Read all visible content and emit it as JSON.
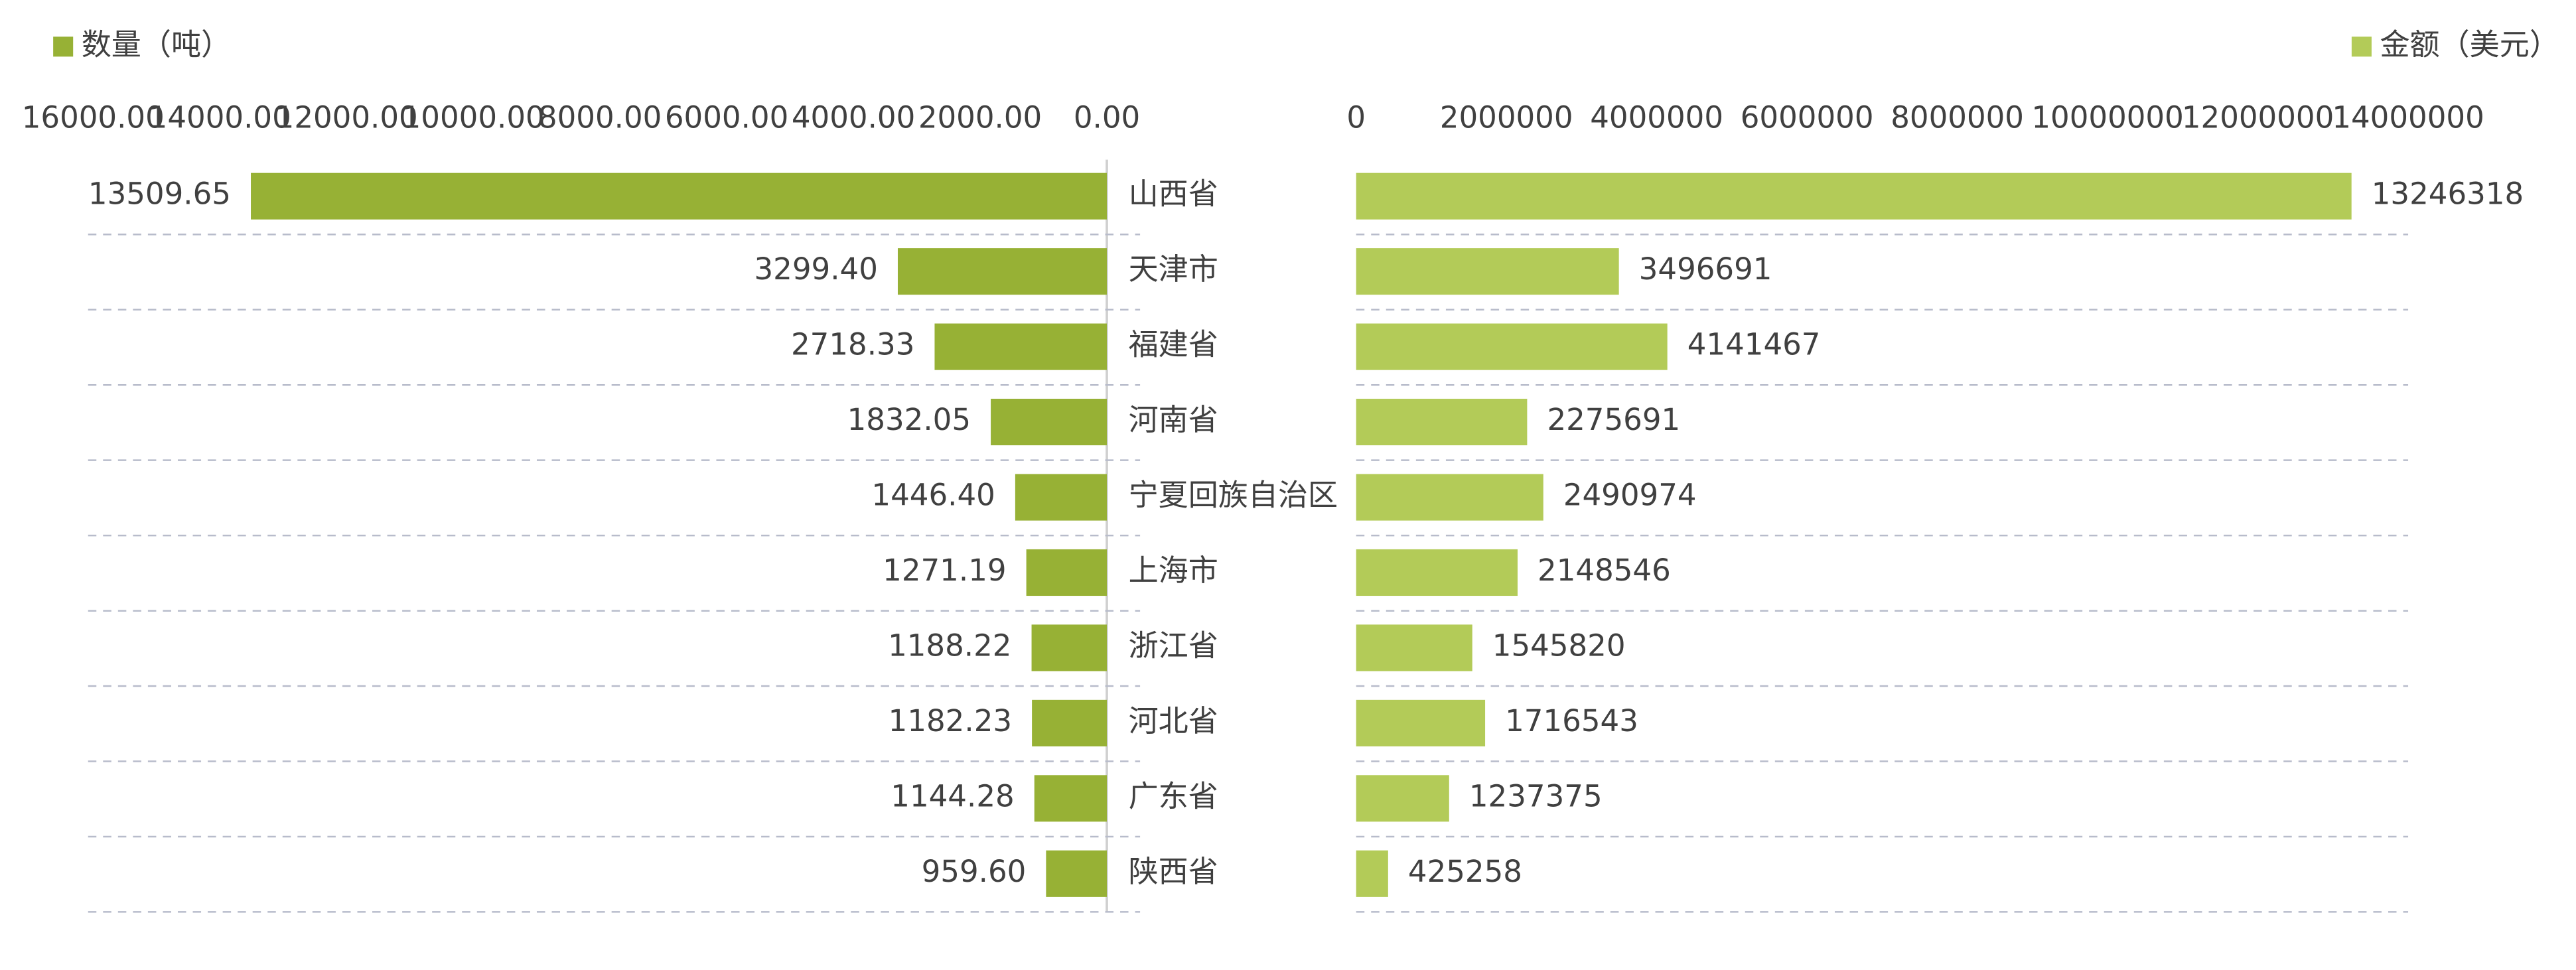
{
  "chart_data": [
    {
      "type": "bar",
      "orientation": "horizontal",
      "x_inverted": true,
      "legend": "top-left",
      "categories": [
        "山西省",
        "天津市",
        "福建省",
        "河南省",
        "宁夏回族自治区",
        "上海市",
        "浙江省",
        "河北省",
        "广东省",
        "陕西省"
      ],
      "series": [
        {
          "name": "数量（吨）",
          "color": "#97b135",
          "values": [
            13509.65,
            3299.4,
            2718.33,
            1832.05,
            1446.4,
            1271.19,
            1188.22,
            1182.23,
            1144.28,
            959.6
          ],
          "value_labels": [
            "13509.65",
            "3299.40",
            "2718.33",
            "1832.05",
            "1446.40",
            "1271.19",
            "1188.22",
            "1182.23",
            "1144.28",
            "959.60"
          ]
        }
      ],
      "xlim": [
        0,
        16000
      ],
      "xticks": [
        {
          "value": 0,
          "label": "0.00"
        },
        {
          "value": 2000,
          "label": "2000.00"
        },
        {
          "value": 4000,
          "label": "4000.00"
        },
        {
          "value": 6000,
          "label": "6000.00"
        },
        {
          "value": 8000,
          "label": "8000.00"
        },
        {
          "value": 10000,
          "label": "10000.00"
        },
        {
          "value": 12000,
          "label": "12000.00"
        },
        {
          "value": 14000,
          "label": "14000.00"
        },
        {
          "value": 16000,
          "label": "16000.00"
        }
      ]
    },
    {
      "type": "bar",
      "orientation": "horizontal",
      "x_inverted": false,
      "legend": "top-right",
      "series": [
        {
          "name": "金额（美元）",
          "color": "#b3cb58",
          "values": [
            13246318,
            3496691,
            4141467,
            2275691,
            2490974,
            2148546,
            1545820,
            1716543,
            1237375,
            425258
          ]
        }
      ],
      "xlim": [
        0,
        14000000
      ],
      "xticks": [
        0,
        2000000,
        4000000,
        6000000,
        8000000,
        10000000,
        12000000,
        14000000
      ]
    }
  ]
}
